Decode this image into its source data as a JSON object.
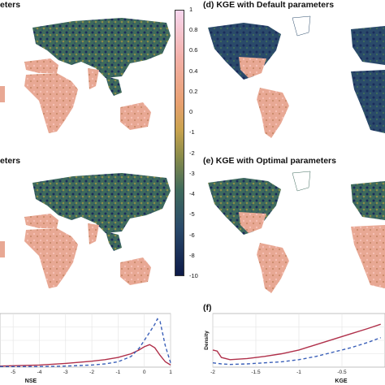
{
  "colors": {
    "ocean": "#ffffff",
    "land_low": "#1a2b5c",
    "land_mid": "#3e6a5c",
    "land_olive": "#8a8c4a",
    "land_high": "#f3b0a8",
    "curve_optimal": "#b0304a",
    "curve_default": "#3a5fb8"
  },
  "panels": {
    "a": {
      "title": "eters"
    },
    "b": {
      "title": "eters"
    },
    "d": {
      "title": "(d) KGE with Default parameters"
    },
    "e": {
      "title": "(e) KGE with Optimal parameters"
    },
    "f": {
      "title": "(f)"
    }
  },
  "colorbar": {
    "ticks": [
      "1",
      "0.8",
      "0.6",
      "0.4",
      "0.2",
      "0",
      "-1",
      "-2",
      "-3",
      "-4",
      "-5",
      "-6",
      "-8",
      "-10"
    ]
  },
  "chart_data": [
    {
      "type": "line",
      "panel": "c",
      "xlabel": "NSE",
      "ylabel": "",
      "xlim": [
        -5.5,
        1
      ],
      "ylim": [
        0,
        1
      ],
      "xticks": [
        "-5",
        "-4",
        "-3",
        "-2",
        "-1",
        "0",
        "1"
      ],
      "grid": true,
      "series": [
        {
          "style": "solid",
          "x": [
            -5.5,
            -4,
            -3,
            -2,
            -1.5,
            -1,
            -0.5,
            -0.2,
            0,
            0.2,
            0.4,
            0.6,
            0.8,
            1.0
          ],
          "y": [
            0.02,
            0.04,
            0.07,
            0.11,
            0.14,
            0.18,
            0.25,
            0.32,
            0.38,
            0.42,
            0.36,
            0.22,
            0.1,
            0.04
          ]
        },
        {
          "style": "dashed",
          "x": [
            -5.5,
            -4,
            -3,
            -2,
            -1.5,
            -1,
            -0.5,
            -0.2,
            0,
            0.2,
            0.4,
            0.5,
            0.6,
            0.8,
            1.0
          ],
          "y": [
            0.01,
            0.01,
            0.02,
            0.04,
            0.06,
            0.1,
            0.2,
            0.35,
            0.5,
            0.65,
            0.8,
            0.9,
            0.85,
            0.4,
            0.08
          ]
        }
      ]
    },
    {
      "type": "line",
      "panel": "f",
      "xlabel": "KGE",
      "ylabel": "Density",
      "xlim": [
        -2,
        0
      ],
      "ylim": [
        0,
        1
      ],
      "xticks": [
        "-2",
        "-1.5",
        "-1",
        "-0.5"
      ],
      "grid": true,
      "series": [
        {
          "style": "solid",
          "x": [
            -2,
            -1.95,
            -1.9,
            -1.8,
            -1.6,
            -1.4,
            -1.2,
            -1.0,
            -0.8,
            -0.6,
            -0.4,
            -0.2,
            -0.05
          ],
          "y": [
            0.32,
            0.3,
            0.18,
            0.14,
            0.16,
            0.2,
            0.25,
            0.32,
            0.42,
            0.52,
            0.62,
            0.72,
            0.8
          ]
        },
        {
          "style": "dashed",
          "x": [
            -2,
            -1.9,
            -1.8,
            -1.6,
            -1.4,
            -1.2,
            -1.0,
            -0.8,
            -0.6,
            -0.4,
            -0.2,
            -0.05
          ],
          "y": [
            0.08,
            0.06,
            0.05,
            0.06,
            0.08,
            0.1,
            0.14,
            0.2,
            0.28,
            0.36,
            0.46,
            0.55
          ]
        }
      ]
    }
  ]
}
